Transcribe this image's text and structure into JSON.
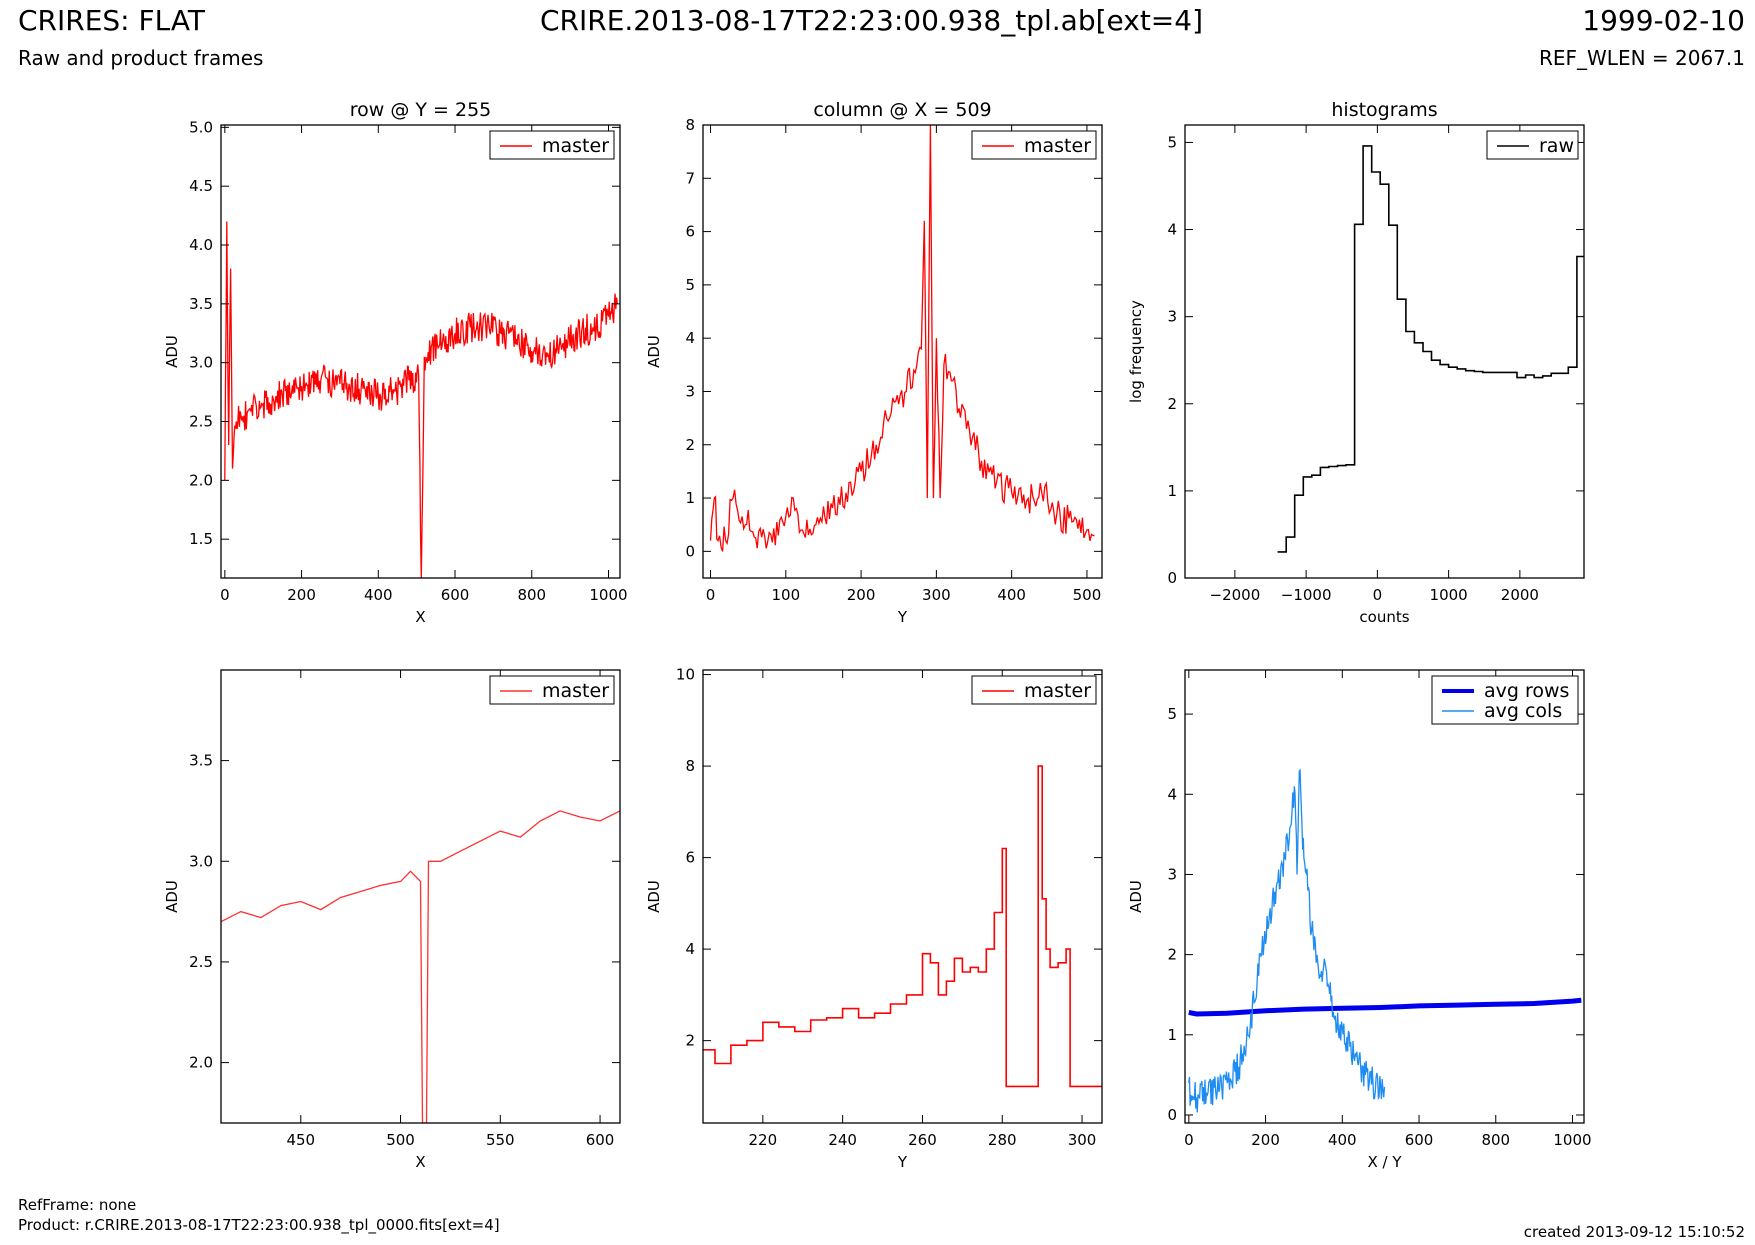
{
  "header": {
    "title_left": "CRIRES: FLAT",
    "subtitle_left": "Raw and product frames",
    "title_center": "CRIRE.2013-08-17T22:23:00.938_tpl.ab[ext=4]",
    "title_right": "1999-02-10",
    "subtitle_right": "REF_WLEN = 2067.1"
  },
  "footer": {
    "ref_frame": "RefFrame: none",
    "product": "Product: r.CRIRE.2013-08-17T22:23:00.938_tpl_0000.fits[ext=4]",
    "created": "created 2013-09-12 15:10:52"
  },
  "chart_data": [
    {
      "type": "line",
      "title": "row @ Y = 255",
      "xlabel": "X",
      "ylabel": "ADU",
      "xlim": [
        -10,
        1030
      ],
      "ylim": [
        1.17,
        5.02
      ],
      "xticks": [
        0,
        200,
        400,
        600,
        800,
        1000
      ],
      "yticks": [
        1.5,
        2.0,
        2.5,
        3.0,
        3.5,
        4.0,
        4.5,
        5.0
      ],
      "legend": "top-right",
      "series": [
        {
          "name": "master",
          "color": "#ff0000",
          "x": [
            0,
            5,
            10,
            15,
            20,
            30,
            50,
            100,
            150,
            200,
            250,
            300,
            350,
            400,
            440,
            480,
            505,
            512,
            520,
            560,
            600,
            640,
            680,
            720,
            760,
            800,
            840,
            880,
            920,
            960,
            1000,
            1023
          ],
          "y": [
            2.0,
            4.2,
            2.3,
            3.8,
            2.1,
            2.5,
            2.55,
            2.65,
            2.72,
            2.8,
            2.85,
            2.82,
            2.78,
            2.72,
            2.75,
            2.85,
            2.9,
            1.17,
            3.05,
            3.15,
            3.25,
            3.3,
            3.32,
            3.25,
            3.2,
            3.1,
            3.05,
            3.15,
            3.25,
            3.3,
            3.4,
            3.5
          ]
        }
      ]
    },
    {
      "type": "line",
      "title": "column @ X = 509",
      "xlabel": "Y",
      "ylabel": "ADU",
      "xlim": [
        -10,
        520
      ],
      "ylim": [
        -0.5,
        8.0
      ],
      "xticks": [
        0,
        100,
        200,
        300,
        400,
        500
      ],
      "yticks": [
        0,
        1,
        2,
        3,
        4,
        5,
        6,
        7,
        8
      ],
      "legend": "top-right",
      "series": [
        {
          "name": "master",
          "color": "#ff0000",
          "x": [
            0,
            5,
            10,
            20,
            30,
            60,
            90,
            110,
            120,
            140,
            160,
            180,
            200,
            220,
            240,
            260,
            270,
            280,
            284,
            288,
            292,
            296,
            300,
            305,
            310,
            320,
            340,
            360,
            380,
            400,
            420,
            440,
            460,
            480,
            500,
            510
          ],
          "y": [
            0.2,
            1.0,
            0.2,
            0.2,
            1.0,
            0.25,
            0.3,
            1.0,
            0.4,
            0.5,
            0.9,
            1.1,
            1.5,
            2.0,
            2.6,
            3.0,
            3.4,
            3.8,
            6.2,
            1.0,
            8.0,
            1.0,
            4.0,
            1.0,
            3.5,
            3.2,
            2.3,
            1.7,
            1.3,
            1.1,
            0.95,
            1.1,
            0.7,
            0.55,
            0.4,
            0.3
          ]
        }
      ]
    },
    {
      "type": "line",
      "title": "histograms",
      "xlabel": "counts",
      "ylabel": "log frequency",
      "xlim": [
        -2700,
        2900
      ],
      "ylim": [
        0,
        5.2
      ],
      "xticks": [
        -2000,
        -1000,
        0,
        1000,
        2000
      ],
      "yticks": [
        0,
        1,
        2,
        3,
        4,
        5
      ],
      "legend": "top-right",
      "series": [
        {
          "name": "raw",
          "color": "#000000",
          "step": true,
          "x": [
            -1400,
            -1280,
            -1160,
            -1040,
            -920,
            -800,
            -680,
            -560,
            -440,
            -320,
            -200,
            -80,
            40,
            160,
            280,
            400,
            520,
            640,
            760,
            880,
            1000,
            1120,
            1240,
            1360,
            1480,
            1600,
            1720,
            1840,
            1960,
            2080,
            2200,
            2320,
            2440,
            2560,
            2680,
            2800,
            2920
          ],
          "y": [
            0.3,
            0.47,
            0.95,
            1.16,
            1.18,
            1.27,
            1.28,
            1.29,
            1.3,
            4.06,
            4.96,
            4.66,
            4.52,
            4.05,
            3.2,
            2.83,
            2.7,
            2.6,
            2.5,
            2.45,
            2.42,
            2.4,
            2.38,
            2.37,
            2.36,
            2.36,
            2.36,
            2.36,
            2.3,
            2.33,
            2.3,
            2.32,
            2.35,
            2.35,
            2.42,
            3.69,
            3.69
          ]
        }
      ]
    },
    {
      "type": "line",
      "xlabel": "X",
      "ylabel": "ADU",
      "xlim": [
        410,
        610
      ],
      "ylim": [
        1.7,
        3.95
      ],
      "xticks": [
        450,
        500,
        550,
        600
      ],
      "yticks": [
        2.0,
        2.5,
        3.0,
        3.5
      ],
      "legend": "top-right",
      "series": [
        {
          "name": "master",
          "color": "#ff3030",
          "x": [
            410,
            420,
            430,
            440,
            450,
            460,
            470,
            480,
            490,
            500,
            505,
            510,
            511,
            512,
            513,
            514,
            520,
            530,
            540,
            550,
            560,
            570,
            580,
            590,
            600,
            610
          ],
          "y": [
            2.7,
            2.75,
            2.72,
            2.78,
            2.8,
            2.76,
            2.82,
            2.85,
            2.88,
            2.9,
            2.95,
            2.9,
            1.7,
            1.7,
            1.7,
            3.0,
            3.0,
            3.05,
            3.1,
            3.15,
            3.12,
            3.2,
            3.25,
            3.22,
            3.2,
            3.25
          ]
        }
      ]
    },
    {
      "type": "line",
      "xlabel": "Y",
      "ylabel": "ADU",
      "xlim": [
        205,
        305
      ],
      "ylim": [
        0.2,
        10.1
      ],
      "xticks": [
        220,
        240,
        260,
        280,
        300
      ],
      "yticks": [
        2,
        4,
        6,
        8,
        10
      ],
      "legend": "top-right",
      "series": [
        {
          "name": "master",
          "color": "#ff0000",
          "step": true,
          "x": [
            205,
            208,
            212,
            216,
            220,
            224,
            228,
            232,
            236,
            240,
            244,
            248,
            252,
            256,
            260,
            262,
            264,
            266,
            268,
            270,
            272,
            274,
            276,
            278,
            280,
            281,
            282,
            284,
            286,
            288,
            289,
            290,
            291,
            292,
            294,
            296,
            297,
            298,
            300,
            302,
            305
          ],
          "y": [
            1.8,
            1.5,
            1.9,
            2.0,
            2.4,
            2.3,
            2.2,
            2.45,
            2.5,
            2.7,
            2.5,
            2.6,
            2.8,
            3.0,
            3.9,
            3.7,
            3.0,
            3.3,
            3.8,
            3.5,
            3.6,
            3.5,
            4.0,
            4.8,
            6.2,
            1.0,
            1.0,
            1.0,
            1.0,
            1.0,
            8.0,
            5.1,
            4.0,
            3.6,
            3.7,
            4.0,
            1.0,
            1.0,
            1.0,
            1.0,
            1.0
          ]
        }
      ]
    },
    {
      "type": "line",
      "xlabel": "X / Y",
      "ylabel": "ADU",
      "xlim": [
        -10,
        1030
      ],
      "ylim": [
        -0.1,
        5.55
      ],
      "xticks": [
        0,
        200,
        400,
        600,
        800,
        1000
      ],
      "yticks": [
        0,
        1,
        2,
        3,
        4,
        5
      ],
      "legend": "top-right",
      "series": [
        {
          "name": "avg rows",
          "color": "#0000ee",
          "thick": true,
          "x": [
            0,
            20,
            100,
            200,
            300,
            400,
            500,
            600,
            700,
            800,
            900,
            1000,
            1023
          ],
          "y": [
            1.28,
            1.26,
            1.27,
            1.3,
            1.32,
            1.33,
            1.34,
            1.36,
            1.37,
            1.38,
            1.39,
            1.42,
            1.43
          ]
        },
        {
          "name": "avg cols",
          "color": "#1e8cf0",
          "x": [
            0,
            5,
            20,
            50,
            100,
            130,
            150,
            170,
            190,
            210,
            230,
            250,
            265,
            275,
            282,
            286,
            290,
            295,
            300,
            310,
            320,
            340,
            355,
            365,
            380,
            400,
            420,
            440,
            460,
            480,
            500,
            510
          ],
          "y": [
            0.4,
            0.25,
            0.22,
            0.28,
            0.4,
            0.6,
            0.9,
            1.4,
            2.0,
            2.5,
            2.9,
            3.2,
            3.6,
            4.1,
            3.0,
            3.9,
            4.3,
            3.6,
            3.2,
            2.8,
            2.3,
            1.7,
            1.9,
            1.6,
            1.2,
            1.1,
            0.85,
            0.65,
            0.5,
            0.4,
            0.35,
            0.35
          ]
        }
      ]
    }
  ]
}
